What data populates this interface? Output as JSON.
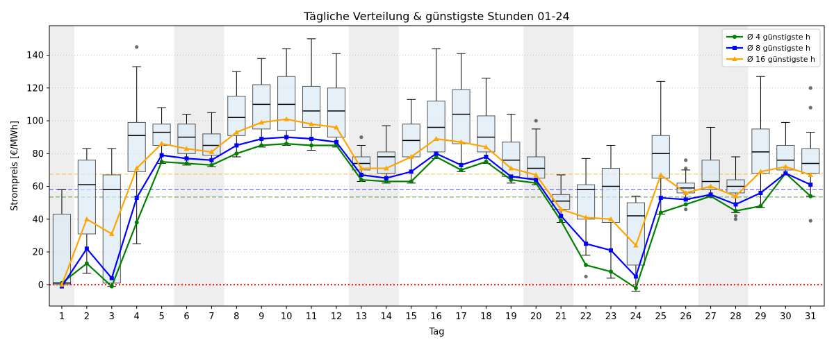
{
  "chart_data": {
    "type": "box+line",
    "title": "Tägliche Verteilung & günstigste Stunden 01-24",
    "xlabel": "Tag",
    "ylabel": "Strompreis [€/MWh]",
    "ylim": [
      -13,
      158
    ],
    "yticks": [
      0,
      20,
      40,
      60,
      80,
      100,
      120,
      140
    ],
    "days": [
      1,
      2,
      3,
      4,
      5,
      6,
      7,
      8,
      9,
      10,
      11,
      12,
      13,
      14,
      15,
      16,
      17,
      18,
      19,
      20,
      21,
      22,
      23,
      24,
      25,
      26,
      27,
      28,
      29,
      30,
      31
    ],
    "weekend_days": [
      1,
      6,
      7,
      13,
      14,
      20,
      21,
      27,
      28
    ],
    "boxes": [
      {
        "day": 1,
        "whislo": 0,
        "q1": 0,
        "med": 1,
        "q3": 43,
        "whishi": 58,
        "fliers": []
      },
      {
        "day": 2,
        "whislo": 7,
        "q1": 31,
        "med": 61,
        "q3": 76,
        "whishi": 83,
        "fliers": []
      },
      {
        "day": 3,
        "whislo": -1,
        "q1": 1,
        "med": 58,
        "q3": 67,
        "whishi": 83,
        "fliers": []
      },
      {
        "day": 4,
        "whislo": 25,
        "q1": 69,
        "med": 91,
        "q3": 99,
        "whishi": 133,
        "fliers": [
          145
        ]
      },
      {
        "day": 5,
        "whislo": 74,
        "q1": 85,
        "med": 93,
        "q3": 98,
        "whishi": 108,
        "fliers": []
      },
      {
        "day": 6,
        "whislo": 73,
        "q1": 80,
        "med": 90,
        "q3": 98,
        "whishi": 104,
        "fliers": []
      },
      {
        "day": 7,
        "whislo": 72,
        "q1": 79,
        "med": 85,
        "q3": 92,
        "whishi": 105,
        "fliers": []
      },
      {
        "day": 8,
        "whislo": 78,
        "q1": 91,
        "med": 102,
        "q3": 115,
        "whishi": 130,
        "fliers": []
      },
      {
        "day": 9,
        "whislo": 84,
        "q1": 95,
        "med": 110,
        "q3": 122,
        "whishi": 138,
        "fliers": []
      },
      {
        "day": 10,
        "whislo": 85,
        "q1": 94,
        "med": 110,
        "q3": 127,
        "whishi": 144,
        "fliers": []
      },
      {
        "day": 11,
        "whislo": 82,
        "q1": 96,
        "med": 106,
        "q3": 121,
        "whishi": 150,
        "fliers": []
      },
      {
        "day": 12,
        "whislo": 84,
        "q1": 90,
        "med": 106,
        "q3": 120,
        "whishi": 141,
        "fliers": []
      },
      {
        "day": 13,
        "whislo": 63,
        "q1": 70,
        "med": 74,
        "q3": 78,
        "whishi": 85,
        "fliers": [
          90
        ]
      },
      {
        "day": 14,
        "whislo": 62,
        "q1": 68,
        "med": 78,
        "q3": 81,
        "whishi": 97,
        "fliers": []
      },
      {
        "day": 15,
        "whislo": 62,
        "q1": 78,
        "med": 88,
        "q3": 98,
        "whishi": 113,
        "fliers": []
      },
      {
        "day": 16,
        "whislo": 77,
        "q1": 81,
        "med": 96,
        "q3": 112,
        "whishi": 144,
        "fliers": []
      },
      {
        "day": 17,
        "whislo": 69,
        "q1": 86,
        "med": 104,
        "q3": 119,
        "whishi": 141,
        "fliers": []
      },
      {
        "day": 18,
        "whislo": 74,
        "q1": 81,
        "med": 90,
        "q3": 103,
        "whishi": 126,
        "fliers": []
      },
      {
        "day": 19,
        "whislo": 62,
        "q1": 66,
        "med": 76,
        "q3": 87,
        "whishi": 104,
        "fliers": []
      },
      {
        "day": 20,
        "whislo": 61,
        "q1": 65,
        "med": 71,
        "q3": 78,
        "whishi": 95,
        "fliers": [
          100
        ]
      },
      {
        "day": 21,
        "whislo": 38,
        "q1": 46,
        "med": 51,
        "q3": 55,
        "whishi": 67,
        "fliers": []
      },
      {
        "day": 22,
        "whislo": 18,
        "q1": 40,
        "med": 58,
        "q3": 61,
        "whishi": 77,
        "fliers": [
          5
        ]
      },
      {
        "day": 23,
        "whislo": 4,
        "q1": 38,
        "med": 60,
        "q3": 71,
        "whishi": 85,
        "fliers": []
      },
      {
        "day": 24,
        "whislo": -4,
        "q1": 12,
        "med": 42,
        "q3": 50,
        "whishi": 54,
        "fliers": []
      },
      {
        "day": 25,
        "whislo": 43,
        "q1": 65,
        "med": 80,
        "q3": 91,
        "whishi": 124,
        "fliers": []
      },
      {
        "day": 26,
        "whislo": 52,
        "q1": 56,
        "med": 59,
        "q3": 62,
        "whishi": 70,
        "fliers": [
          76,
          71,
          46
        ]
      },
      {
        "day": 27,
        "whislo": 54,
        "q1": 58,
        "med": 63,
        "q3": 76,
        "whishi": 96,
        "fliers": []
      },
      {
        "day": 28,
        "whislo": 44,
        "q1": 56,
        "med": 60,
        "q3": 64,
        "whishi": 78,
        "fliers": [
          42,
          40
        ]
      },
      {
        "day": 29,
        "whislo": 47,
        "q1": 68,
        "med": 81,
        "q3": 95,
        "whishi": 127,
        "fliers": []
      },
      {
        "day": 30,
        "whislo": 67,
        "q1": 70,
        "med": 76,
        "q3": 85,
        "whishi": 99,
        "fliers": []
      },
      {
        "day": 31,
        "whislo": 54,
        "q1": 68,
        "med": 74,
        "q3": 83,
        "whishi": 93,
        "fliers": [
          120,
          108,
          39
        ]
      }
    ],
    "series": [
      {
        "name": "Ø 4 günstigste h",
        "color": "#008000",
        "marker": "circle",
        "values": [
          1,
          13,
          -1,
          38,
          75,
          74,
          73,
          80,
          85,
          86,
          85,
          85,
          64,
          63,
          63,
          78,
          70,
          75,
          64,
          62,
          39,
          12,
          8,
          -2,
          44,
          49,
          54,
          45,
          48,
          68,
          54
        ]
      },
      {
        "name": "Ø 8 günstigste h",
        "color": "#0000ff",
        "marker": "square",
        "values": [
          -1,
          22,
          4,
          53,
          79,
          77,
          76,
          85,
          89,
          90,
          89,
          87,
          67,
          65,
          69,
          80,
          73,
          78,
          66,
          64,
          42,
          25,
          21,
          5,
          53,
          52,
          55,
          49,
          56,
          68,
          61
        ]
      },
      {
        "name": "Ø 16 günstigste h",
        "color": "#ffa500",
        "marker": "triangle",
        "values": [
          0,
          40,
          31,
          71,
          86,
          83,
          81,
          93,
          99,
          101,
          98,
          96,
          71,
          71,
          78,
          89,
          87,
          84,
          71,
          67,
          46,
          41,
          40,
          24,
          67,
          56,
          60,
          54,
          69,
          72,
          67
        ]
      }
    ],
    "reference_lines": [
      {
        "value": 67.5,
        "color": "#ffa500",
        "style": "dashed"
      },
      {
        "value": 58,
        "color": "#0000ff",
        "style": "dashed"
      },
      {
        "value": 53.5,
        "color": "#008000",
        "style": "dashed"
      },
      {
        "value": 0,
        "color": "#ff0000",
        "style": "dotted"
      }
    ],
    "grid": "y-dotted",
    "legend_position": "top-right"
  }
}
